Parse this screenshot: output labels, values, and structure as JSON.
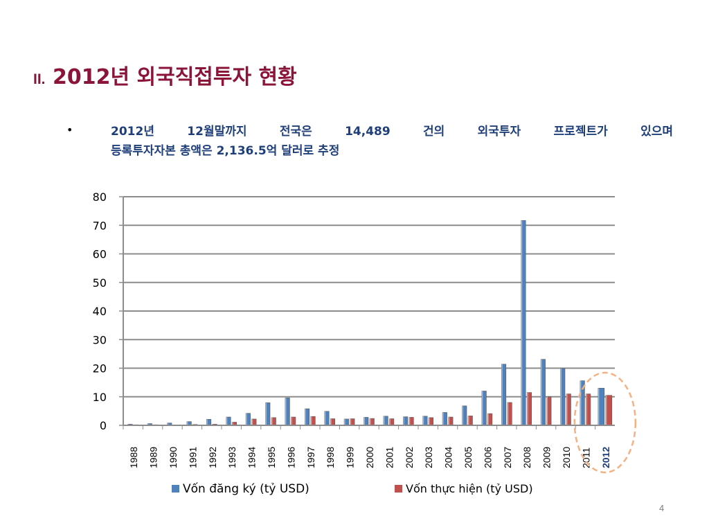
{
  "slide": {
    "title_number": "II.",
    "title_text": "2012년 외국직접투자 현황",
    "bullet_symbol": "•",
    "bullet_line1": "2012년 12월말까지 전국은 14,489 건의 외국투자 프로젝트가 있으며",
    "bullet_line2": "등록투자자본 총액은 2,136.5억 달러로 추정",
    "page_number": "4"
  },
  "chart_data": {
    "type": "bar",
    "categories": [
      "1988",
      "1989",
      "1990",
      "1991",
      "1992",
      "1993",
      "1994",
      "1995",
      "1996",
      "1997",
      "1998",
      "1999",
      "2000",
      "2001",
      "2002",
      "2003",
      "2004",
      "2005",
      "2006",
      "2007",
      "2008",
      "2009",
      "2010",
      "2011",
      "2012"
    ],
    "series": [
      {
        "name": "Vốn đăng ký (tỷ USD)",
        "color": "#4f81bd",
        "values": [
          0.4,
          0.6,
          0.8,
          1.3,
          2.1,
          2.9,
          4.2,
          7.9,
          9.6,
          5.8,
          4.9,
          2.2,
          2.8,
          3.2,
          3.0,
          3.2,
          4.5,
          6.8,
          12.0,
          21.4,
          71.7,
          23.1,
          19.9,
          15.6,
          13.0
        ]
      },
      {
        "name": "Vốn thực hiện (tỷ USD)",
        "color": "#c0504d",
        "values": [
          0.2,
          0.2,
          0.1,
          0.3,
          0.4,
          1.1,
          2.2,
          2.7,
          2.9,
          3.1,
          2.3,
          2.3,
          2.4,
          2.3,
          2.8,
          2.7,
          2.9,
          3.3,
          4.1,
          8.0,
          11.5,
          10.0,
          11.0,
          11.0,
          10.5
        ]
      }
    ],
    "ylim": [
      0,
      80
    ],
    "yticks": [
      "0",
      "10",
      "20",
      "30",
      "40",
      "50",
      "60",
      "70",
      "80"
    ],
    "grid": true,
    "legend_position": "bottom",
    "highlight": {
      "category": "2012",
      "label_color": "#1f3f7a",
      "circle_color": "#f4b183"
    }
  }
}
